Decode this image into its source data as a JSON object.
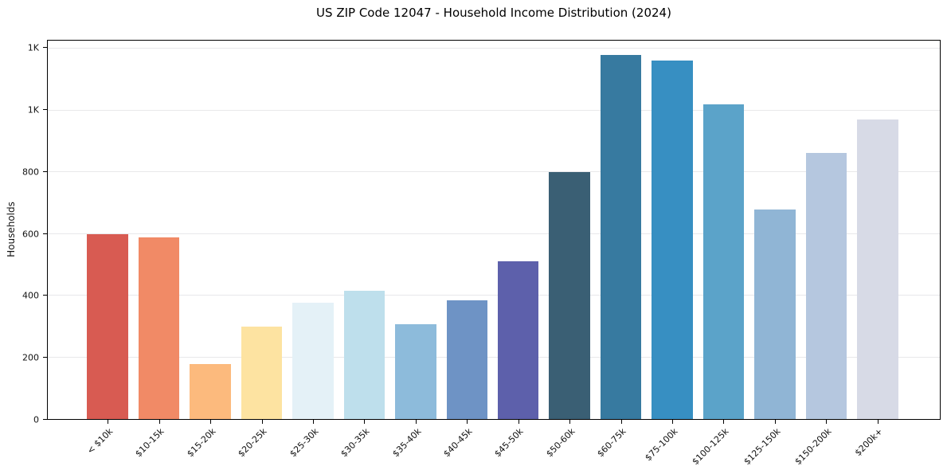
{
  "chart_data": {
    "type": "bar",
    "title": "US ZIP Code 12047 - Household Income Distribution (2024)",
    "xlabel": "",
    "ylabel": "Households",
    "categories": [
      "< $10k",
      "$10-15k",
      "$15-20k",
      "$20-25k",
      "$25-30k",
      "$30-35k",
      "$35-40k",
      "$40-45k",
      "$45-50k",
      "$50-60k",
      "$60-75k",
      "$75-100k",
      "$100-125k",
      "$125-150k",
      "$150-200k",
      "$200k+"
    ],
    "values": [
      600,
      588,
      178,
      300,
      377,
      416,
      307,
      384,
      511,
      800,
      1180,
      1161,
      1019,
      678,
      863,
      970
    ],
    "bar_colors": [
      "#d85b52",
      "#f18a66",
      "#fcba7d",
      "#fde3a1",
      "#e4f1f7",
      "#bedfec",
      "#8dbbdb",
      "#6e93c5",
      "#5d60ab",
      "#3a5f74",
      "#377aa0",
      "#378fc2",
      "#5ba3c9",
      "#90b5d5",
      "#b5c7df",
      "#d7dae6"
    ],
    "ylim": [
      0,
      1226
    ],
    "yticks": [
      {
        "value": 0,
        "label": "0"
      },
      {
        "value": 200,
        "label": "200"
      },
      {
        "value": 400,
        "label": "400"
      },
      {
        "value": 600,
        "label": "600"
      },
      {
        "value": 800,
        "label": "800"
      },
      {
        "value": 1000,
        "label": "1K"
      },
      {
        "value": 1200,
        "label": "1K"
      }
    ],
    "grid": "horizontal",
    "legend": "none",
    "colors": {
      "background": "#ffffff",
      "gridline": "#e8e8ea",
      "spine": "#000000",
      "tick_text": "#111111",
      "title_text": "#000000"
    }
  }
}
